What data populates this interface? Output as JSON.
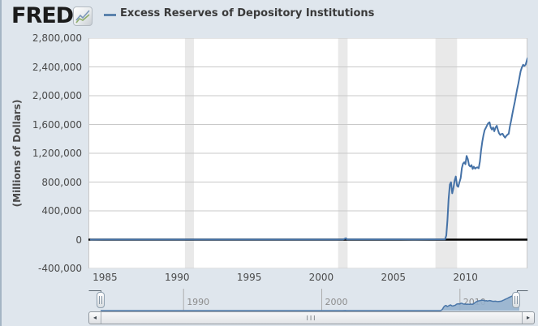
{
  "header": {
    "logo": "FRED",
    "registered_mark": "®",
    "legend_marker": "—",
    "title": "Excess Reserves of Depository Institutions"
  },
  "y_axis": {
    "title": "(Millions of Dollars)",
    "ticks": [
      {
        "value": 2800000,
        "label": "2,800,000"
      },
      {
        "value": 2400000,
        "label": "2,400,000"
      },
      {
        "value": 2000000,
        "label": "2,000,000"
      },
      {
        "value": 1600000,
        "label": "1,600,000"
      },
      {
        "value": 1200000,
        "label": "1,200,000"
      },
      {
        "value": 800000,
        "label": "800,000"
      },
      {
        "value": 400000,
        "label": "400,000"
      },
      {
        "value": 0,
        "label": "0"
      },
      {
        "value": -400000,
        "label": "-400,000"
      }
    ]
  },
  "x_axis": {
    "ticks": [
      {
        "value": 1985,
        "label": "1985"
      },
      {
        "value": 1990,
        "label": "1990"
      },
      {
        "value": 1995,
        "label": "1995"
      },
      {
        "value": 2000,
        "label": "2000"
      },
      {
        "value": 2005,
        "label": "2005"
      },
      {
        "value": 2010,
        "label": "2010"
      }
    ]
  },
  "minimap": {
    "x_range": [
      1984,
      2014.3
    ],
    "y_range": [
      0,
      2800000
    ],
    "ticks": [
      {
        "value": 1990,
        "label": "1990"
      },
      {
        "value": 2000,
        "label": "2000"
      },
      {
        "value": 2010,
        "label": "2010"
      }
    ],
    "fill_color": "#96b1cd",
    "line_color": "#4a76a8"
  },
  "scrollbar": {
    "left_arrow": "◂",
    "right_arrow": "▸",
    "grip": "III"
  },
  "chart_data": {
    "type": "line",
    "title": "Excess Reserves of Depository Institutions",
    "ylabel": "(Millions of Dollars)",
    "x_range": [
      1983.85,
      2014.3
    ],
    "y_range": [
      -400000,
      2800000
    ],
    "grid": true,
    "line_color": "#4572a7",
    "zero_line_color": "#000000",
    "gridline_color": "#c9c9c9",
    "recession_band_color": "#e9e9e9",
    "recession_bands": [
      [
        1990.54,
        1991.17
      ],
      [
        2001.17,
        2001.83
      ],
      [
        2007.92,
        2009.42
      ]
    ],
    "series": [
      {
        "name": "Excess Reserves of Depository Institutions",
        "points": [
          [
            1984.0,
            400
          ],
          [
            1985.0,
            800
          ],
          [
            1986.0,
            900
          ],
          [
            1987.0,
            900
          ],
          [
            1988.0,
            950
          ],
          [
            1989.0,
            900
          ],
          [
            1990.0,
            1000
          ],
          [
            1991.0,
            1050
          ],
          [
            1992.0,
            1000
          ],
          [
            1993.0,
            1050
          ],
          [
            1994.0,
            1100
          ],
          [
            1995.0,
            1200
          ],
          [
            1996.0,
            1300
          ],
          [
            1997.0,
            1400
          ],
          [
            1998.0,
            1400
          ],
          [
            1999.0,
            1300
          ],
          [
            2000.0,
            1300
          ],
          [
            2001.5,
            1400
          ],
          [
            2001.71,
            19000
          ],
          [
            2001.79,
            2500
          ],
          [
            2002.5,
            1800
          ],
          [
            2003.5,
            1800
          ],
          [
            2004.5,
            1700
          ],
          [
            2005.5,
            1700
          ],
          [
            2006.5,
            1600
          ],
          [
            2007.5,
            1700
          ],
          [
            2008.25,
            1800
          ],
          [
            2008.58,
            2000
          ],
          [
            2008.67,
            59000
          ],
          [
            2008.75,
            267000
          ],
          [
            2008.83,
            559000
          ],
          [
            2008.92,
            767000
          ],
          [
            2009.0,
            798000
          ],
          [
            2009.08,
            643000
          ],
          [
            2009.17,
            725000
          ],
          [
            2009.25,
            824000
          ],
          [
            2009.33,
            877000
          ],
          [
            2009.42,
            748000
          ],
          [
            2009.5,
            733000
          ],
          [
            2009.58,
            794000
          ],
          [
            2009.67,
            855000
          ],
          [
            2009.75,
            995000
          ],
          [
            2009.83,
            1056000
          ],
          [
            2009.92,
            1075000
          ],
          [
            2010.0,
            1048000
          ],
          [
            2010.08,
            1163000
          ],
          [
            2010.17,
            1117000
          ],
          [
            2010.25,
            1034000
          ],
          [
            2010.33,
            1015000
          ],
          [
            2010.42,
            1035000
          ],
          [
            2010.5,
            982000
          ],
          [
            2010.58,
            1014000
          ],
          [
            2010.67,
            986000
          ],
          [
            2010.75,
            1000000
          ],
          [
            2010.83,
            1005000
          ],
          [
            2010.92,
            991000
          ],
          [
            2011.0,
            1085000
          ],
          [
            2011.08,
            1235000
          ],
          [
            2011.17,
            1364000
          ],
          [
            2011.25,
            1451000
          ],
          [
            2011.33,
            1520000
          ],
          [
            2011.42,
            1555000
          ],
          [
            2011.5,
            1590000
          ],
          [
            2011.58,
            1618000
          ],
          [
            2011.67,
            1630000
          ],
          [
            2011.75,
            1560000
          ],
          [
            2011.83,
            1530000
          ],
          [
            2011.92,
            1559000
          ],
          [
            2012.0,
            1505000
          ],
          [
            2012.08,
            1556000
          ],
          [
            2012.17,
            1583000
          ],
          [
            2012.25,
            1524000
          ],
          [
            2012.33,
            1478000
          ],
          [
            2012.42,
            1453000
          ],
          [
            2012.5,
            1468000
          ],
          [
            2012.58,
            1470000
          ],
          [
            2012.67,
            1438000
          ],
          [
            2012.75,
            1418000
          ],
          [
            2012.83,
            1441000
          ],
          [
            2012.92,
            1460000
          ],
          [
            2013.0,
            1470000
          ],
          [
            2013.08,
            1568000
          ],
          [
            2013.17,
            1654000
          ],
          [
            2013.25,
            1740000
          ],
          [
            2013.33,
            1826000
          ],
          [
            2013.42,
            1912000
          ],
          [
            2013.5,
            1998000
          ],
          [
            2013.58,
            2084000
          ],
          [
            2013.67,
            2170000
          ],
          [
            2013.75,
            2256000
          ],
          [
            2013.83,
            2340000
          ],
          [
            2013.92,
            2395000
          ],
          [
            2014.0,
            2430000
          ],
          [
            2014.08,
            2415000
          ],
          [
            2014.17,
            2428000
          ],
          [
            2014.3,
            2520000
          ]
        ]
      }
    ]
  }
}
